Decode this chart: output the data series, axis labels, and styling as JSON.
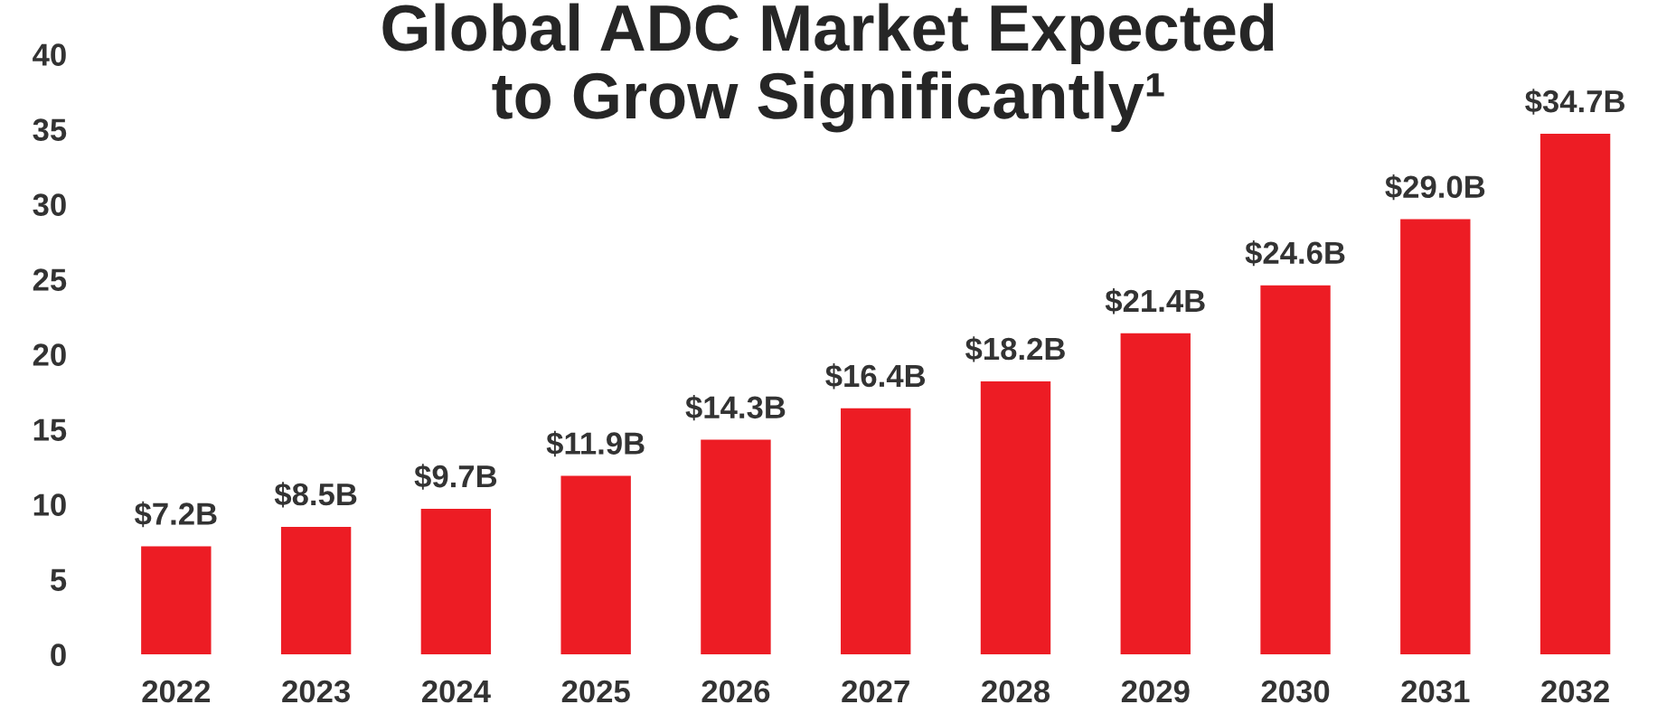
{
  "chart_data": {
    "type": "bar",
    "title": "Global ADC Market Expected\nto Grow Significantly¹",
    "categories": [
      "2022",
      "2023",
      "2024",
      "2025",
      "2026",
      "2027",
      "2028",
      "2029",
      "2030",
      "2031",
      "2032"
    ],
    "values": [
      7.2,
      8.5,
      9.7,
      11.9,
      14.3,
      16.4,
      18.2,
      21.4,
      24.6,
      29.0,
      34.7
    ],
    "value_labels": [
      "$7.2B",
      "$8.5B",
      "$9.7B",
      "$11.9B",
      "$14.3B",
      "$16.4B",
      "$18.2B",
      "$21.4B",
      "$24.6B",
      "$29.0B",
      "$34.7B"
    ],
    "color": "#ed1c24",
    "ylim": [
      0,
      40
    ],
    "yticks": [
      0,
      5,
      10,
      15,
      20,
      25,
      30,
      35,
      40
    ],
    "grid": false
  }
}
